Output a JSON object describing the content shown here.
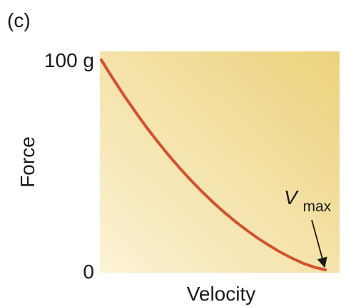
{
  "panel_label": "(c)",
  "chart_data": {
    "type": "line",
    "xlabel": "Velocity",
    "ylabel": "Force",
    "y_ticks": [
      "100 g",
      "0"
    ],
    "ylim": [
      0,
      100
    ],
    "xlim": [
      0,
      1
    ],
    "series": [
      {
        "points": [
          [
            0.0,
            100
          ],
          [
            0.05,
            91.5
          ],
          [
            0.1,
            83.3
          ],
          [
            0.15,
            75.6
          ],
          [
            0.2,
            68.2
          ],
          [
            0.25,
            61.3
          ],
          [
            0.3,
            54.7
          ],
          [
            0.35,
            48.5
          ],
          [
            0.4,
            42.7
          ],
          [
            0.45,
            37.2
          ],
          [
            0.5,
            32.1
          ],
          [
            0.55,
            27.3
          ],
          [
            0.6,
            22.9
          ],
          [
            0.65,
            18.8
          ],
          [
            0.7,
            15.0
          ],
          [
            0.75,
            11.6
          ],
          [
            0.8,
            8.4
          ],
          [
            0.85,
            5.6
          ],
          [
            0.9,
            3.2
          ],
          [
            0.95,
            1.3
          ],
          [
            1.0,
            0
          ]
        ],
        "color": "#d6502e"
      }
    ],
    "annotations": [
      {
        "text": "V",
        "subscript": "max",
        "x": 1.0,
        "y": 0
      }
    ],
    "background_gradient": [
      "#ecd27c",
      "#fcf3d6"
    ]
  }
}
